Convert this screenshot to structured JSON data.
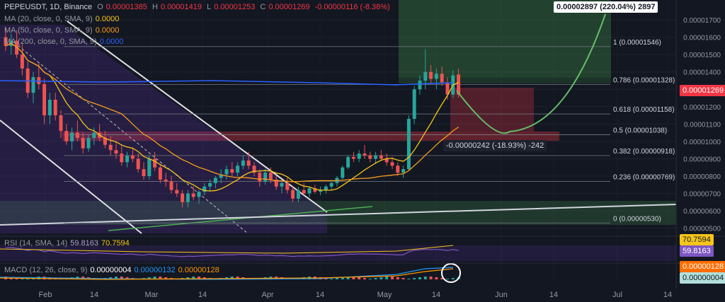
{
  "header": {
    "symbol": "PEPEUSDT, 1D, Binance",
    "ohlc": [
      {
        "k": "O",
        "v": "0.00001385"
      },
      {
        "k": "H",
        "v": "0.00001419"
      },
      {
        "k": "L",
        "v": "0.00001253"
      },
      {
        "k": "C",
        "v": "0.00001269"
      }
    ],
    "change": "-0.00000116 (-8.38%)",
    "ma_lines": [
      {
        "label": "MA (20, close, 0, SMA, 9)",
        "value": "0.0000",
        "color": "#f5c518"
      },
      {
        "label": "MA (50, close, 0, SMA, 9)",
        "value": "0.0000",
        "color": "#f59c1a"
      },
      {
        "label": "MA (200, close, 0, SMA, 9)",
        "value": "0.0000",
        "color": "#2962ff"
      }
    ]
  },
  "price_tag": {
    "value": "0.00001269",
    "color": "#f23645"
  },
  "long_box_label": "0.00002897 (220.04%) 2897",
  "short_box_label": "-0.00000242 (-18.93%) -242",
  "fib_levels": [
    {
      "label": "1 (0.00001546)",
      "price": 1.546e-05
    },
    {
      "label": "0.786 (0.00001328)",
      "price": 1.328e-05
    },
    {
      "label": "0.618 (0.00001158)",
      "price": 1.158e-05
    },
    {
      "label": "0.5 (0.00001038)",
      "price": 1.038e-05
    },
    {
      "label": "0.382 (0.00000918)",
      "price": 9.18e-06
    },
    {
      "label": "0.236 (0.00000769)",
      "price": 7.69e-06
    },
    {
      "label": "0 (0.00000530)",
      "price": 5.3e-06
    }
  ],
  "rsi": {
    "label": "RSI (14, SMA, 14)",
    "value": "59.8163",
    "ma": "70.7594"
  },
  "macd": {
    "label": "MACD (12, 26, close, 9)",
    "hist": "0.00000004",
    "macd": "0.00000132",
    "signal": "0.00000128"
  },
  "chart_data": {
    "type": "candlestick",
    "title": "PEPEUSDT, 1D, Binance",
    "x_ticks": [
      "Feb",
      "14",
      "Mar",
      "14",
      "Apr",
      "14",
      "May",
      "14",
      "Jun",
      "14",
      "Jul",
      "14"
    ],
    "y_ticks": [
      "0.00001700",
      "0.00001600",
      "0.00001500",
      "0.00001400",
      "0.00001300",
      "0.00001200",
      "0.00001100",
      "0.00001000",
      "0.00000900",
      "0.00000800",
      "0.00000700",
      "0.00000600",
      "0.00000500"
    ],
    "ylim": [
      4.7e-06,
      1.79e-05
    ],
    "candles": [
      [
        1.6,
        1.66,
        1.52,
        1.55
      ],
      [
        1.55,
        1.62,
        1.5,
        1.58
      ],
      [
        1.58,
        1.64,
        1.48,
        1.5
      ],
      [
        1.5,
        1.56,
        1.38,
        1.42
      ],
      [
        1.42,
        1.46,
        1.25,
        1.28
      ],
      [
        1.28,
        1.4,
        1.22,
        1.37
      ],
      [
        1.37,
        1.45,
        1.3,
        1.33
      ],
      [
        1.33,
        1.36,
        1.1,
        1.15
      ],
      [
        1.15,
        1.28,
        1.1,
        1.24
      ],
      [
        1.24,
        1.28,
        1.12,
        1.15
      ],
      [
        1.15,
        1.18,
        1.02,
        1.06
      ],
      [
        1.06,
        1.1,
        0.98,
        1.0
      ],
      [
        1.0,
        1.08,
        0.95,
        1.05
      ],
      [
        1.05,
        1.12,
        1.0,
        1.02
      ],
      [
        1.02,
        1.05,
        0.93,
        0.96
      ],
      [
        0.96,
        1.04,
        0.94,
        1.02
      ],
      [
        1.02,
        1.08,
        0.98,
        1.05
      ],
      [
        1.05,
        1.1,
        1.0,
        1.02
      ],
      [
        1.02,
        1.06,
        0.96,
        0.98
      ],
      [
        0.98,
        1.03,
        0.92,
        0.95
      ],
      [
        0.95,
        1.0,
        0.9,
        0.93
      ],
      [
        0.93,
        0.98,
        0.86,
        0.88
      ],
      [
        0.88,
        0.94,
        0.85,
        0.92
      ],
      [
        0.92,
        0.96,
        0.88,
        0.9
      ],
      [
        0.9,
        0.93,
        0.82,
        0.84
      ],
      [
        0.84,
        0.88,
        0.78,
        0.8
      ],
      [
        0.8,
        0.92,
        0.78,
        0.9
      ],
      [
        0.9,
        0.94,
        0.83,
        0.85
      ],
      [
        0.85,
        0.87,
        0.76,
        0.78
      ],
      [
        0.78,
        0.82,
        0.74,
        0.77
      ],
      [
        0.77,
        0.8,
        0.7,
        0.72
      ],
      [
        0.72,
        0.76,
        0.68,
        0.7
      ],
      [
        0.7,
        0.72,
        0.62,
        0.65
      ],
      [
        0.65,
        0.72,
        0.62,
        0.7
      ],
      [
        0.7,
        0.74,
        0.66,
        0.68
      ],
      [
        0.68,
        0.72,
        0.64,
        0.71
      ],
      [
        0.71,
        0.76,
        0.69,
        0.74
      ],
      [
        0.74,
        0.78,
        0.71,
        0.76
      ],
      [
        0.76,
        0.8,
        0.73,
        0.79
      ],
      [
        0.79,
        0.84,
        0.76,
        0.81
      ],
      [
        0.81,
        0.86,
        0.78,
        0.84
      ],
      [
        0.84,
        0.88,
        0.8,
        0.82
      ],
      [
        0.82,
        0.88,
        0.8,
        0.86
      ],
      [
        0.86,
        0.92,
        0.84,
        0.89
      ],
      [
        0.89,
        0.94,
        0.84,
        0.86
      ],
      [
        0.86,
        0.88,
        0.8,
        0.82
      ],
      [
        0.82,
        0.84,
        0.74,
        0.77
      ],
      [
        0.77,
        0.84,
        0.75,
        0.82
      ],
      [
        0.82,
        0.85,
        0.76,
        0.78
      ],
      [
        0.78,
        0.8,
        0.72,
        0.74
      ],
      [
        0.74,
        0.78,
        0.7,
        0.76
      ],
      [
        0.76,
        0.79,
        0.7,
        0.72
      ],
      [
        0.72,
        0.74,
        0.65,
        0.67
      ],
      [
        0.67,
        0.74,
        0.65,
        0.72
      ],
      [
        0.72,
        0.76,
        0.69,
        0.7
      ],
      [
        0.7,
        0.74,
        0.68,
        0.73
      ],
      [
        0.73,
        0.75,
        0.7,
        0.71
      ],
      [
        0.71,
        0.74,
        0.69,
        0.72
      ],
      [
        0.72,
        0.75,
        0.7,
        0.74
      ],
      [
        0.74,
        0.77,
        0.72,
        0.76
      ],
      [
        0.76,
        0.8,
        0.74,
        0.79
      ],
      [
        0.79,
        0.86,
        0.78,
        0.85
      ],
      [
        0.85,
        0.92,
        0.84,
        0.91
      ],
      [
        0.91,
        0.94,
        0.88,
        0.9
      ],
      [
        0.9,
        0.95,
        0.88,
        0.93
      ],
      [
        0.93,
        0.98,
        0.9,
        0.92
      ],
      [
        0.92,
        0.94,
        0.88,
        0.9
      ],
      [
        0.9,
        0.94,
        0.87,
        0.92
      ],
      [
        0.92,
        0.95,
        0.89,
        0.9
      ],
      [
        0.9,
        0.93,
        0.86,
        0.88
      ],
      [
        0.88,
        0.91,
        0.84,
        0.86
      ],
      [
        0.86,
        0.88,
        0.8,
        0.82
      ],
      [
        0.82,
        0.86,
        0.79,
        0.84
      ],
      [
        0.84,
        1.15,
        0.83,
        1.13
      ],
      [
        1.13,
        1.32,
        1.1,
        1.3
      ],
      [
        1.3,
        1.38,
        1.27,
        1.35
      ],
      [
        1.35,
        1.53,
        1.3,
        1.4
      ],
      [
        1.4,
        1.44,
        1.33,
        1.36
      ],
      [
        1.36,
        1.42,
        1.3,
        1.39
      ],
      [
        1.39,
        1.43,
        1.32,
        1.34
      ],
      [
        1.34,
        1.37,
        1.24,
        1.27
      ],
      [
        1.27,
        1.41,
        1.25,
        1.38
      ],
      [
        1.385,
        1.419,
        1.253,
        1.269
      ]
    ],
    "candle_scale": "1e-5",
    "rsi_last": 59.8163,
    "rsi_ma_last": 70.7594
  }
}
